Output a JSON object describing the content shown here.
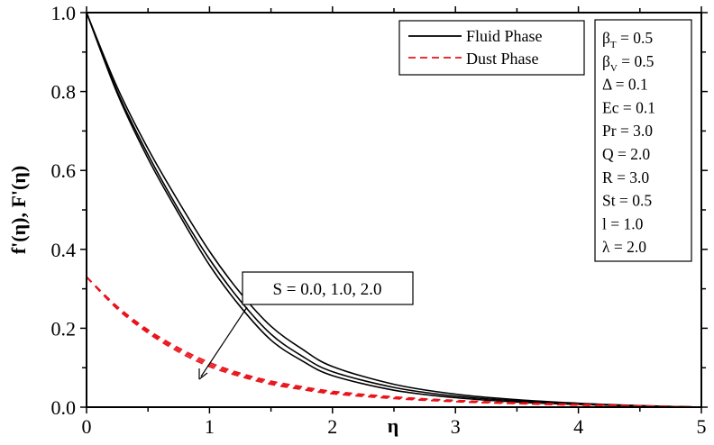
{
  "chart_data": {
    "type": "line",
    "title": "",
    "xlabel": "η",
    "ylabel": "f'(η), F'(η)",
    "xlim": [
      0,
      5
    ],
    "ylim": [
      0,
      1.0
    ],
    "xticks": [
      "0",
      "1",
      "2",
      "3",
      "4",
      "5"
    ],
    "yticks": [
      "0.0",
      "0.2",
      "0.4",
      "0.6",
      "0.8",
      "1.0"
    ],
    "grid": false,
    "legend": {
      "position": "upper-right",
      "entries": [
        {
          "label": "Fluid Phase",
          "style": "solid",
          "color": "#000000"
        },
        {
          "label": "Dust Phase",
          "style": "dashed",
          "color": "#e8141b"
        }
      ]
    },
    "parameters": [
      {
        "name": "β",
        "sub": "T",
        "value": "= 0.5"
      },
      {
        "name": "β",
        "sub": "V",
        "value": "= 0.5"
      },
      {
        "name": "Δ",
        "sub": "",
        "value": "= 0.1"
      },
      {
        "name": "Ec",
        "sub": "",
        "value": "= 0.1"
      },
      {
        "name": "Pr",
        "sub": "",
        "value": "= 3.0"
      },
      {
        "name": "Q",
        "sub": "",
        "value": "= 2.0"
      },
      {
        "name": "R",
        "sub": "",
        "value": "= 3.0"
      },
      {
        "name": "St",
        "sub": "",
        "value": "= 0.5"
      },
      {
        "name": "l",
        "sub": "",
        "value": "= 1.0"
      },
      {
        "name": "λ",
        "sub": "",
        "value": "= 2.0"
      }
    ],
    "annotation": {
      "text": "S = 0.0, 1.0, 2.0",
      "arrow": "points toward decreasing curves"
    },
    "x": [
      0,
      0.25,
      0.5,
      0.75,
      1.0,
      1.25,
      1.5,
      1.75,
      2.0,
      2.5,
      3.0,
      3.5,
      4.0,
      4.5,
      5.0
    ],
    "series": [
      {
        "name": "Fluid Phase S=0.0",
        "phase": "fluid",
        "values": [
          1.0,
          0.81,
          0.655,
          0.52,
          0.395,
          0.29,
          0.205,
          0.148,
          0.103,
          0.058,
          0.033,
          0.019,
          0.01,
          0.004,
          0.0
        ]
      },
      {
        "name": "Fluid Phase S=1.0",
        "phase": "fluid",
        "values": [
          1.0,
          0.8,
          0.64,
          0.5,
          0.375,
          0.27,
          0.185,
          0.13,
          0.09,
          0.05,
          0.028,
          0.016,
          0.008,
          0.003,
          0.0
        ]
      },
      {
        "name": "Fluid Phase S=2.0",
        "phase": "fluid",
        "values": [
          1.0,
          0.795,
          0.63,
          0.49,
          0.36,
          0.255,
          0.17,
          0.118,
          0.08,
          0.043,
          0.024,
          0.013,
          0.007,
          0.003,
          0.0
        ]
      },
      {
        "name": "Dust Phase S=0.0",
        "phase": "dust",
        "values": [
          0.33,
          0.255,
          0.196,
          0.15,
          0.113,
          0.086,
          0.066,
          0.052,
          0.04,
          0.026,
          0.017,
          0.011,
          0.007,
          0.003,
          0.0
        ]
      },
      {
        "name": "Dust Phase S=1.0",
        "phase": "dust",
        "values": [
          0.33,
          0.252,
          0.192,
          0.145,
          0.108,
          0.082,
          0.062,
          0.048,
          0.037,
          0.024,
          0.015,
          0.01,
          0.006,
          0.003,
          0.0
        ]
      },
      {
        "name": "Dust Phase S=2.0",
        "phase": "dust",
        "values": [
          0.33,
          0.249,
          0.188,
          0.14,
          0.103,
          0.078,
          0.058,
          0.045,
          0.034,
          0.022,
          0.014,
          0.009,
          0.005,
          0.002,
          0.0
        ]
      }
    ]
  }
}
